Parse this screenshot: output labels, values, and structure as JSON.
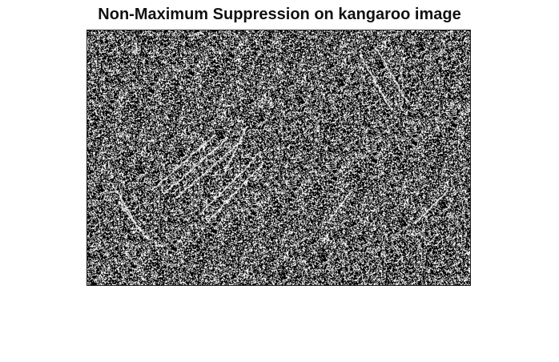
{
  "title": "Non-Maximum Suppression on kangaroo image",
  "image": {
    "description_tag": "binary-edge-map",
    "foreground_color": "#ffffff",
    "background_color": "#000000"
  }
}
